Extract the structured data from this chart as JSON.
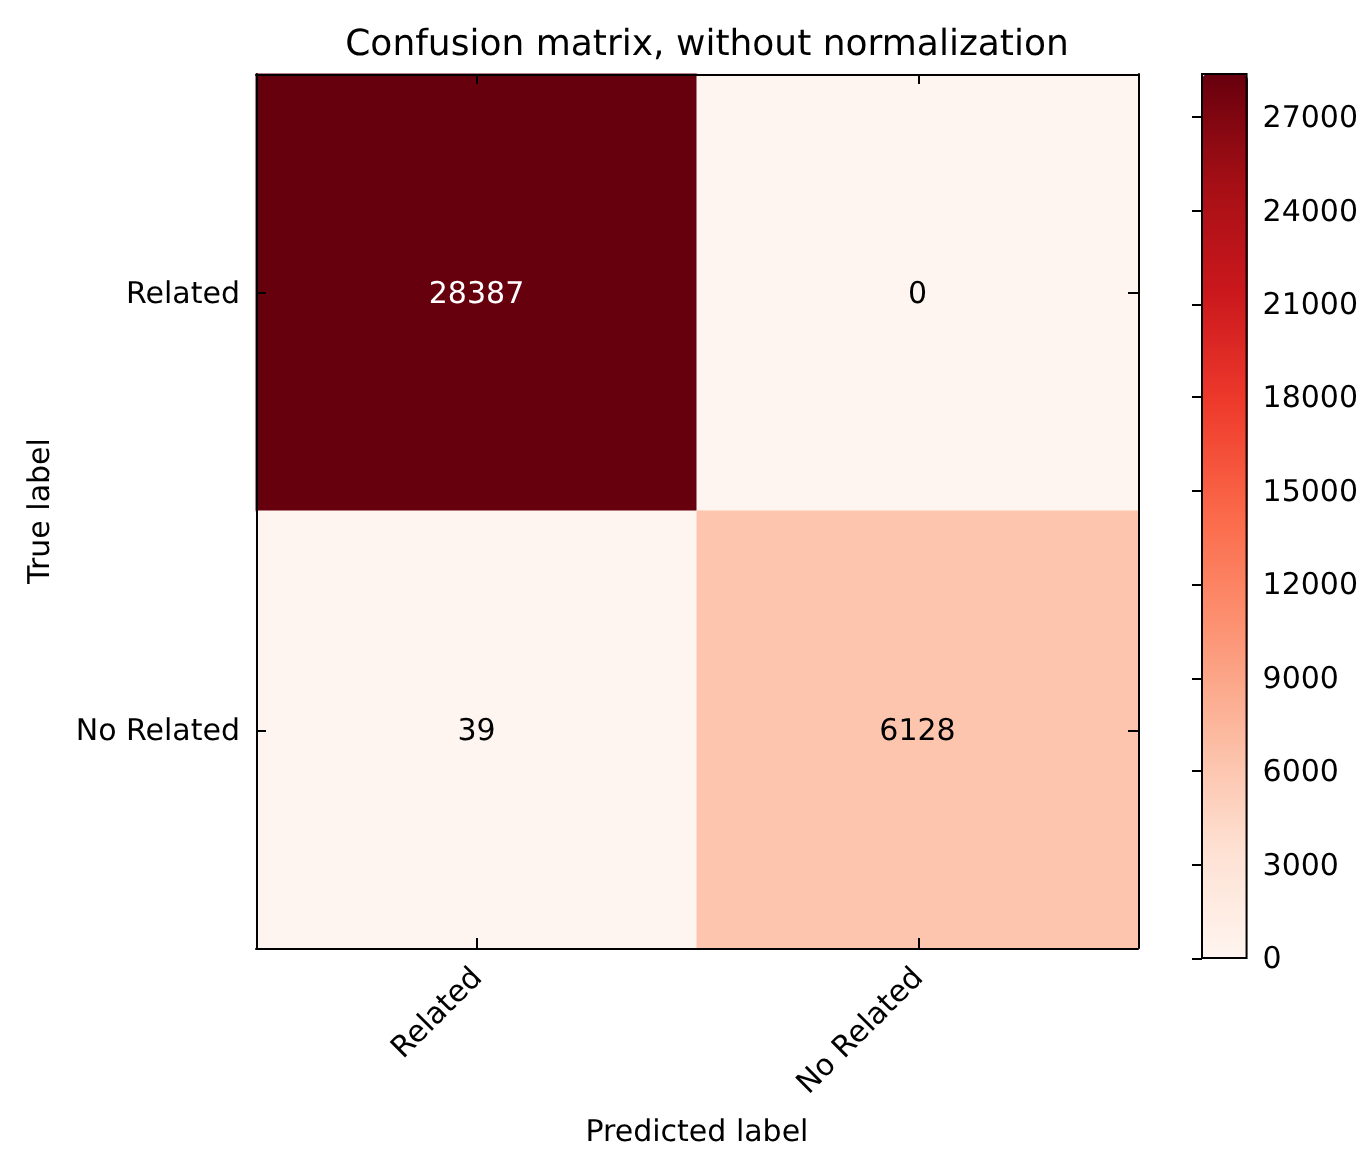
{
  "chart_data": {
    "type": "heatmap",
    "title": "Confusion matrix, without normalization",
    "xlabel": "Predicted label",
    "ylabel": "True label",
    "categories": [
      "Related",
      "No Related"
    ],
    "y_categories": [
      "Related",
      "No Related"
    ],
    "cells": [
      [
        28387,
        0
      ],
      [
        39,
        6128
      ]
    ],
    "data_labels": true,
    "clim": [
      0,
      28387
    ],
    "cticks": [
      0,
      3000,
      6000,
      9000,
      12000,
      15000,
      18000,
      21000,
      24000,
      27000
    ]
  }
}
